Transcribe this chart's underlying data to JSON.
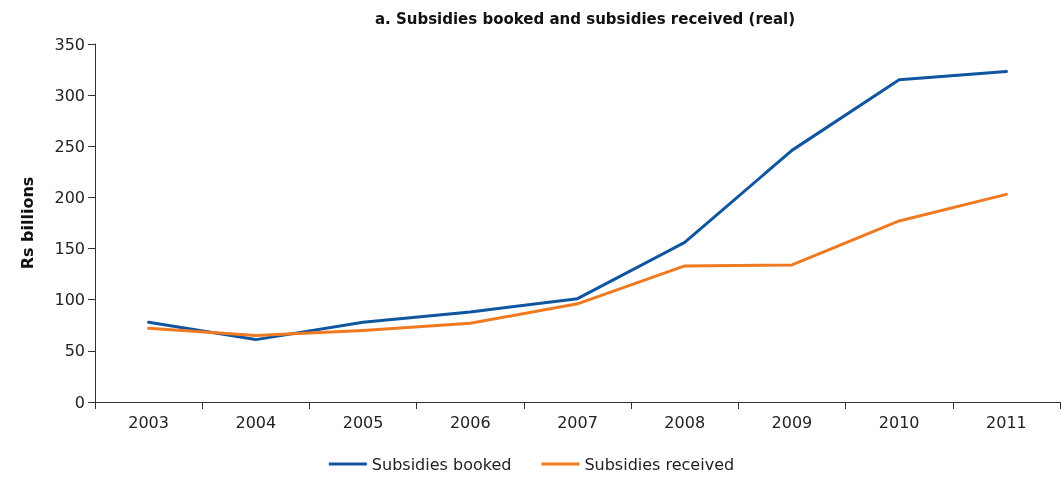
{
  "chart_data": {
    "type": "line",
    "title": "a. Subsidies booked and subsidies received (real)",
    "ylabel": "Rs billions",
    "categories": [
      "2003",
      "2004",
      "2005",
      "2006",
      "2007",
      "2008",
      "2009",
      "2010",
      "2011"
    ],
    "series": [
      {
        "name": "Subsidies booked",
        "color": "#0f55a0",
        "values": [
          78,
          61,
          78,
          88,
          101,
          156,
          246,
          315,
          323
        ]
      },
      {
        "name": "Subsidies received",
        "color": "#f07a22",
        "values": [
          72,
          65,
          70,
          77,
          96,
          133,
          134,
          177,
          203
        ]
      }
    ],
    "ylim": [
      0,
      350
    ],
    "yticks": [
      0,
      50,
      100,
      150,
      200,
      250,
      300,
      350
    ],
    "grid": false,
    "legend": "bottom",
    "marker": "none",
    "line_style": "solid"
  }
}
